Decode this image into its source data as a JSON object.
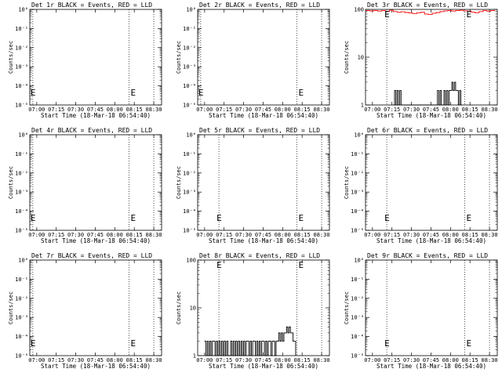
{
  "window_title": "",
  "chart_data": [
    {
      "type": "line",
      "title": "Det 1r BLACK = Events, RED = LLD",
      "xlabel": "Start Time (18-Mar-18 06:54:40)",
      "ylabel": "Counts/sec",
      "x_ticks": [
        "07:00",
        "07:15",
        "07:30",
        "07:45",
        "08:00",
        "08:15",
        "08:30"
      ],
      "yscale": "log",
      "y_ticks": [
        "10⁰",
        "10⁻¹",
        "10⁻²",
        "10⁻³",
        "10⁻⁴",
        "10⁻⁵"
      ],
      "ylim": [
        1e-05,
        1
      ],
      "vlines": [
        "06:57",
        "08:11",
        "08:30"
      ],
      "marker": "E",
      "series": []
    },
    {
      "type": "line",
      "title": "Det 2r BLACK = Events, RED = LLD",
      "xlabel": "Start Time (18-Mar-18 06:54:40)",
      "ylabel": "Counts/sec",
      "x_ticks": [
        "07:00",
        "07:15",
        "07:30",
        "07:45",
        "08:00",
        "08:15",
        "08:30"
      ],
      "yscale": "log",
      "y_ticks": [
        "10⁰",
        "10⁻¹",
        "10⁻²",
        "10⁻³",
        "10⁻⁴",
        "10⁻⁵"
      ],
      "ylim": [
        1e-05,
        1
      ],
      "vlines": [
        "06:57",
        "08:11",
        "08:30"
      ],
      "marker": "E",
      "series": []
    },
    {
      "type": "line",
      "title": "Det 3r BLACK = Events, RED = LLD",
      "xlabel": "Start Time (18-Mar-18 06:54:40)",
      "ylabel": "Counts/sec",
      "x_ticks": [
        "07:00",
        "07:15",
        "07:30",
        "07:45",
        "08:00",
        "08:15",
        "08:30"
      ],
      "yscale": "log",
      "y_ticks": [
        "100",
        "10",
        "1"
      ],
      "ylim": [
        1,
        100
      ],
      "vlines": [
        "07:11",
        "08:11",
        "08:30"
      ],
      "marker": "E",
      "series": [
        {
          "color": "#ff0000",
          "x": [
            "06:55",
            "06:58",
            "07:01",
            "07:04",
            "07:07",
            "07:10",
            "07:13",
            "07:16",
            "07:19",
            "07:22",
            "07:25",
            "07:28",
            "07:31",
            "07:34",
            "07:37",
            "07:40",
            "07:43",
            "07:46",
            "07:49",
            "07:52",
            "07:55",
            "07:58",
            "08:01",
            "08:04",
            "08:07",
            "08:10",
            "08:13",
            "08:16",
            "08:19",
            "08:22",
            "08:25",
            "08:28",
            "08:31",
            "08:34"
          ],
          "y": [
            95,
            93,
            94,
            92,
            95,
            91,
            96,
            90,
            88,
            89,
            86,
            84,
            82,
            85,
            88,
            80,
            78,
            83,
            86,
            90,
            93,
            95,
            92,
            94,
            96,
            93,
            92,
            88,
            85,
            90,
            94,
            92,
            95,
            93
          ]
        },
        {
          "color": "#000000",
          "x": [
            "07:16",
            "07:17",
            "07:18",
            "07:19",
            "07:20",
            "07:21",
            "07:22",
            "07:23",
            "07:24",
            "07:25",
            "07:26",
            "07:27",
            "07:28",
            "07:29",
            "07:30",
            "07:31",
            "07:32",
            "07:33",
            "07:34",
            "07:35",
            "07:36",
            "07:37",
            "07:38",
            "07:39",
            "07:40",
            "07:41",
            "07:42",
            "07:43",
            "07:44",
            "07:45",
            "07:46",
            "07:47",
            "07:48",
            "07:49",
            "07:50",
            "07:51",
            "07:52",
            "07:53",
            "07:54",
            "07:55",
            "07:56",
            "07:57",
            "07:58",
            "07:59",
            "08:00",
            "08:01",
            "08:02",
            "08:03",
            "08:04",
            "08:05",
            "08:06",
            "08:07",
            "08:08",
            "08:09"
          ],
          "y": [
            1,
            2,
            1,
            2,
            1,
            2,
            1,
            1,
            1,
            1,
            1,
            1,
            1,
            1,
            1,
            1,
            1,
            1,
            1,
            1,
            1,
            1,
            1,
            1,
            1,
            1,
            1,
            1,
            1,
            1,
            1,
            1,
            1,
            1,
            2,
            1,
            2,
            1,
            1,
            2,
            1,
            2,
            1,
            2,
            2,
            3,
            2,
            3,
            2,
            2,
            1,
            2,
            1,
            1
          ]
        }
      ]
    },
    {
      "type": "line",
      "title": "Det 4r BLACK = Events, RED = LLD",
      "xlabel": "Start Time (18-Mar-18 06:54:40)",
      "ylabel": "Counts/sec",
      "x_ticks": [
        "07:00",
        "07:15",
        "07:30",
        "07:45",
        "08:00",
        "08:15",
        "08:30"
      ],
      "yscale": "log",
      "y_ticks": [
        "10⁰",
        "10⁻¹",
        "10⁻²",
        "10⁻³",
        "10⁻⁴",
        "10⁻⁵"
      ],
      "ylim": [
        1e-05,
        1
      ],
      "vlines": [
        "06:57",
        "08:11",
        "08:30"
      ],
      "marker": "E",
      "series": []
    },
    {
      "type": "line",
      "title": "Det 5r BLACK = Events, RED = LLD",
      "xlabel": "Start Time (18-Mar-18 06:54:40)",
      "ylabel": "Counts/sec",
      "x_ticks": [
        "07:00",
        "07:15",
        "07:30",
        "07:45",
        "08:00",
        "08:15",
        "08:30"
      ],
      "yscale": "log",
      "y_ticks": [
        "10⁰",
        "10⁻¹",
        "10⁻²",
        "10⁻³",
        "10⁻⁴",
        "10⁻⁵"
      ],
      "ylim": [
        1e-05,
        1
      ],
      "vlines": [
        "07:11",
        "08:11",
        "08:30"
      ],
      "marker": "E",
      "series": []
    },
    {
      "type": "line",
      "title": "Det 6r BLACK = Events, RED = LLD",
      "xlabel": "Start Time (18-Mar-18 06:54:40)",
      "ylabel": "Counts/sec",
      "x_ticks": [
        "07:00",
        "07:15",
        "07:30",
        "07:45",
        "08:00",
        "08:15",
        "08:30"
      ],
      "yscale": "log",
      "y_ticks": [
        "10⁰",
        "10⁻¹",
        "10⁻²",
        "10⁻³",
        "10⁻⁴",
        "10⁻⁵"
      ],
      "ylim": [
        1e-05,
        1
      ],
      "vlines": [
        "07:11",
        "08:11",
        "08:30"
      ],
      "marker": "E",
      "series": []
    },
    {
      "type": "line",
      "title": "Det 7r BLACK = Events, RED = LLD",
      "xlabel": "Start Time (18-Mar-18 06:54:40)",
      "ylabel": "Counts/sec",
      "x_ticks": [
        "07:00",
        "07:15",
        "07:30",
        "07:45",
        "08:00",
        "08:15",
        "08:30"
      ],
      "yscale": "log",
      "y_ticks": [
        "10⁰",
        "10⁻¹",
        "10⁻²",
        "10⁻³",
        "10⁻⁴",
        "10⁻⁵"
      ],
      "ylim": [
        1e-05,
        1
      ],
      "vlines": [
        "06:57",
        "08:11",
        "08:30"
      ],
      "marker": "E",
      "series": []
    },
    {
      "type": "line",
      "title": "Det 8r BLACK = Events, RED = LLD",
      "xlabel": "Start Time (18-Mar-18 06:54:40)",
      "ylabel": "Counts/sec",
      "x_ticks": [
        "07:00",
        "07:15",
        "07:30",
        "07:45",
        "08:00",
        "08:15",
        "08:30"
      ],
      "yscale": "log",
      "y_ticks": [
        "100",
        "10",
        "1"
      ],
      "ylim": [
        1,
        100
      ],
      "vlines": [
        "07:11",
        "08:11",
        "08:30"
      ],
      "marker": "E",
      "series": [
        {
          "color": "#000000",
          "x": [
            "07:00",
            "07:01",
            "07:02",
            "07:03",
            "07:04",
            "07:05",
            "07:06",
            "07:07",
            "07:08",
            "07:09",
            "07:10",
            "07:11",
            "07:12",
            "07:13",
            "07:14",
            "07:15",
            "07:16",
            "07:17",
            "07:18",
            "07:19",
            "07:20",
            "07:21",
            "07:22",
            "07:23",
            "07:24",
            "07:25",
            "07:26",
            "07:27",
            "07:28",
            "07:29",
            "07:30",
            "07:31",
            "07:32",
            "07:33",
            "07:34",
            "07:35",
            "07:36",
            "07:37",
            "07:38",
            "07:39",
            "07:40",
            "07:41",
            "07:42",
            "07:43",
            "07:44",
            "07:45",
            "07:46",
            "07:47",
            "07:48",
            "07:49",
            "07:50",
            "07:51",
            "07:52",
            "07:53",
            "07:54",
            "07:55",
            "07:56",
            "07:57",
            "07:58",
            "07:59",
            "08:00",
            "08:01",
            "08:02",
            "08:03",
            "08:04",
            "08:05",
            "08:06",
            "08:07",
            "08:08",
            "08:09",
            "08:10"
          ],
          "y": [
            2,
            1,
            2,
            1,
            2,
            1,
            2,
            2,
            1,
            2,
            1,
            2,
            1,
            2,
            1,
            2,
            1,
            2,
            1,
            1,
            2,
            1,
            2,
            1,
            2,
            1,
            2,
            1,
            2,
            1,
            2,
            1,
            2,
            2,
            1,
            2,
            1,
            2,
            2,
            1,
            2,
            1,
            2,
            1,
            2,
            2,
            1,
            2,
            1,
            2,
            2,
            1,
            2,
            2,
            1,
            2,
            2,
            3,
            2,
            3,
            2,
            3,
            3,
            4,
            3,
            4,
            3,
            3,
            2,
            2,
            1
          ]
        }
      ]
    },
    {
      "type": "line",
      "title": "Det 9r BLACK = Events, RED = LLD",
      "xlabel": "Start Time (18-Mar-18 06:54:40)",
      "ylabel": "Counts/sec",
      "x_ticks": [
        "07:00",
        "07:15",
        "07:30",
        "07:45",
        "08:00",
        "08:15",
        "08:30"
      ],
      "yscale": "log",
      "y_ticks": [
        "10⁰",
        "10⁻¹",
        "10⁻²",
        "10⁻³",
        "10⁻⁴",
        "10⁻⁵"
      ],
      "ylim": [
        1e-05,
        1
      ],
      "vlines": [
        "07:11",
        "08:11",
        "08:30"
      ],
      "marker": "E",
      "series": []
    }
  ]
}
